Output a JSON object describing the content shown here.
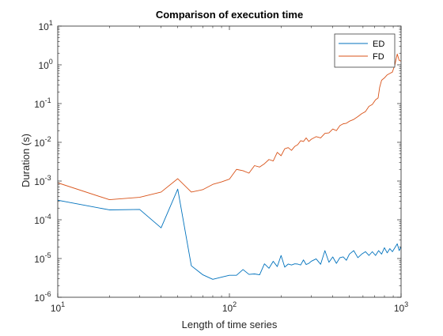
{
  "chart_data": {
    "type": "line",
    "title": "Comparison of execution time",
    "xlabel": "Length of time series",
    "ylabel": "Duration (s)",
    "x_scale": "log",
    "y_scale": "log",
    "xlim": [
      10,
      1000
    ],
    "ylim": [
      1e-06,
      10
    ],
    "grid": false,
    "legend_position": "top-right",
    "x_ticks": [
      {
        "value": 10,
        "base": "10",
        "exp": "1"
      },
      {
        "value": 100,
        "base": "10",
        "exp": "2"
      },
      {
        "value": 1000,
        "base": "10",
        "exp": "3"
      }
    ],
    "y_ticks": [
      {
        "value": 1e-06,
        "base": "10",
        "exp": "-6"
      },
      {
        "value": 1e-05,
        "base": "10",
        "exp": "-5"
      },
      {
        "value": 0.0001,
        "base": "10",
        "exp": "-4"
      },
      {
        "value": 0.001,
        "base": "10",
        "exp": "-3"
      },
      {
        "value": 0.01,
        "base": "10",
        "exp": "-2"
      },
      {
        "value": 0.1,
        "base": "10",
        "exp": "-1"
      },
      {
        "value": 1,
        "base": "10",
        "exp": "0"
      },
      {
        "value": 10,
        "base": "10",
        "exp": "1"
      }
    ],
    "series": [
      {
        "name": "ED",
        "color": "#0072BD",
        "points": [
          [
            10,
            0.00032
          ],
          [
            20,
            0.00018
          ],
          [
            30,
            0.000185
          ],
          [
            40,
            6.2e-05
          ],
          [
            50,
            0.00062
          ],
          [
            60,
            6.5e-06
          ],
          [
            70,
            3.8e-06
          ],
          [
            80,
            2.9e-06
          ],
          [
            90,
            3.3e-06
          ],
          [
            100,
            3.7e-06
          ],
          [
            110,
            3.7e-06
          ],
          [
            120,
            5.2e-06
          ],
          [
            130,
            3.9e-06
          ],
          [
            140,
            4e-06
          ],
          [
            150,
            3.8e-06
          ],
          [
            160,
            7.3e-06
          ],
          [
            170,
            5.6e-06
          ],
          [
            180,
            8.5e-06
          ],
          [
            190,
            6.2e-06
          ],
          [
            200,
            1.2e-05
          ],
          [
            210,
            6e-06
          ],
          [
            220,
            7.2e-06
          ],
          [
            230,
            6.8e-06
          ],
          [
            240,
            7.3e-06
          ],
          [
            250,
            7.2e-06
          ],
          [
            260,
            6.8e-06
          ],
          [
            270,
            9.2e-06
          ],
          [
            280,
            7e-06
          ],
          [
            290,
            7.5e-06
          ],
          [
            300,
            8.5e-06
          ],
          [
            320,
            9.8e-06
          ],
          [
            340,
            7.1e-06
          ],
          [
            360,
            1.6e-05
          ],
          [
            380,
            8e-06
          ],
          [
            400,
            1.1e-05
          ],
          [
            420,
            7.5e-06
          ],
          [
            440,
            1.05e-05
          ],
          [
            460,
            1.1e-05
          ],
          [
            480,
            9e-06
          ],
          [
            500,
            1.3e-05
          ],
          [
            530,
            1.6e-05
          ],
          [
            560,
            1.05e-05
          ],
          [
            590,
            1.3e-05
          ],
          [
            620,
            1.5e-05
          ],
          [
            650,
            1.2e-05
          ],
          [
            680,
            1.5e-05
          ],
          [
            710,
            1.2e-05
          ],
          [
            740,
            1.6e-05
          ],
          [
            770,
            1.3e-05
          ],
          [
            800,
            1.9e-05
          ],
          [
            830,
            1.4e-05
          ],
          [
            860,
            1.8e-05
          ],
          [
            890,
            1.5e-05
          ],
          [
            920,
            1.9e-05
          ],
          [
            950,
            2.4e-05
          ],
          [
            975,
            1.6e-05
          ],
          [
            1000,
            2e-05
          ]
        ]
      },
      {
        "name": "FD",
        "color": "#D95319",
        "points": [
          [
            10,
            0.0009
          ],
          [
            20,
            0.00033
          ],
          [
            30,
            0.00038
          ],
          [
            40,
            0.00052
          ],
          [
            50,
            0.00115
          ],
          [
            60,
            0.00052
          ],
          [
            70,
            0.0006
          ],
          [
            80,
            0.00082
          ],
          [
            90,
            0.00095
          ],
          [
            100,
            0.00112
          ],
          [
            110,
            0.002
          ],
          [
            120,
            0.00185
          ],
          [
            130,
            0.0016
          ],
          [
            140,
            0.0025
          ],
          [
            150,
            0.0023
          ],
          [
            160,
            0.0028
          ],
          [
            170,
            0.0036
          ],
          [
            180,
            0.0033
          ],
          [
            190,
            0.0055
          ],
          [
            200,
            0.0045
          ],
          [
            210,
            0.0068
          ],
          [
            220,
            0.0073
          ],
          [
            230,
            0.0062
          ],
          [
            240,
            0.0078
          ],
          [
            250,
            0.0087
          ],
          [
            260,
            0.011
          ],
          [
            270,
            0.0105
          ],
          [
            280,
            0.013
          ],
          [
            290,
            0.0105
          ],
          [
            300,
            0.012
          ],
          [
            320,
            0.014
          ],
          [
            340,
            0.013
          ],
          [
            360,
            0.017
          ],
          [
            380,
            0.0175
          ],
          [
            400,
            0.022
          ],
          [
            420,
            0.02
          ],
          [
            440,
            0.027
          ],
          [
            460,
            0.03
          ],
          [
            480,
            0.031
          ],
          [
            500,
            0.035
          ],
          [
            530,
            0.039
          ],
          [
            560,
            0.046
          ],
          [
            590,
            0.055
          ],
          [
            620,
            0.062
          ],
          [
            650,
            0.085
          ],
          [
            680,
            0.095
          ],
          [
            710,
            0.125
          ],
          [
            735,
            0.14
          ],
          [
            750,
            0.26
          ],
          [
            770,
            0.4
          ],
          [
            800,
            0.46
          ],
          [
            830,
            0.55
          ],
          [
            860,
            0.6
          ],
          [
            890,
            0.65
          ],
          [
            920,
            1.0
          ],
          [
            950,
            1.9
          ],
          [
            975,
            1.3
          ],
          [
            1000,
            1.25
          ]
        ]
      }
    ]
  }
}
